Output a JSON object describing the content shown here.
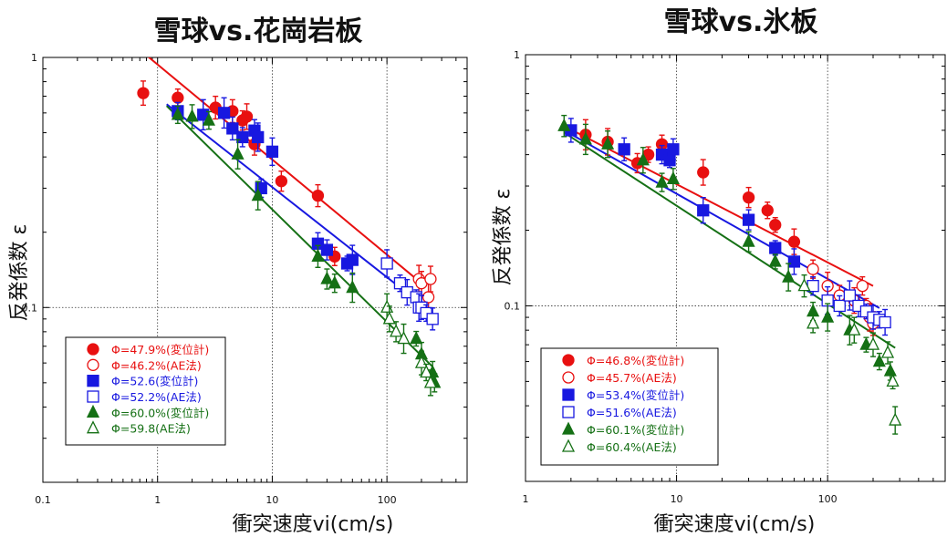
{
  "chart_data": [
    {
      "type": "scatter",
      "title": "雪球vs.花崗岩板",
      "xlabel": "衝突速度vi(cm/s)",
      "ylabel": "反発係数 ε",
      "x_scale": "log",
      "y_scale": "log",
      "xlim": [
        0.1,
        500
      ],
      "ylim": [
        0.02,
        1
      ],
      "x_ticks": [
        "0.1",
        "1",
        "10",
        "100"
      ],
      "y_ticks": [
        "1",
        "0.1"
      ],
      "grid": "dotted at decades",
      "legend_position": "bottom-left",
      "series": [
        {
          "name": "Φ=47.9%(変位計)",
          "color": "#e81010",
          "marker": "circle-filled",
          "points": [
            [
              0.75,
              0.72
            ],
            [
              1.5,
              0.69
            ],
            [
              3.2,
              0.63
            ],
            [
              4.5,
              0.61
            ],
            [
              5.5,
              0.56
            ],
            [
              6.0,
              0.58
            ],
            [
              7.0,
              0.45
            ],
            [
              12.0,
              0.32
            ],
            [
              25.0,
              0.28
            ],
            [
              35.0,
              0.16
            ]
          ]
        },
        {
          "name": "Φ=46.2%(AE法)",
          "color": "#e81010",
          "marker": "circle-open",
          "points": [
            [
              190,
              0.13
            ],
            [
              200,
              0.125
            ],
            [
              230,
              0.11
            ],
            [
              240,
              0.13
            ]
          ]
        },
        {
          "name": "Φ=52.6(変位計)",
          "color": "#1818e0",
          "marker": "square-filled",
          "points": [
            [
              1.5,
              0.61
            ],
            [
              2.5,
              0.59
            ],
            [
              3.8,
              0.6
            ],
            [
              4.5,
              0.52
            ],
            [
              5.5,
              0.48
            ],
            [
              7.0,
              0.51
            ],
            [
              7.5,
              0.48
            ],
            [
              8.0,
              0.3
            ],
            [
              10,
              0.42
            ],
            [
              25,
              0.18
            ],
            [
              30,
              0.17
            ],
            [
              45,
              0.15
            ],
            [
              50,
              0.155
            ]
          ]
        },
        {
          "name": "Φ=52.2%(AE法)",
          "color": "#1818e0",
          "marker": "square-open",
          "points": [
            [
              100,
              0.15
            ],
            [
              130,
              0.125
            ],
            [
              150,
              0.115
            ],
            [
              180,
              0.11
            ],
            [
              190,
              0.1
            ],
            [
              200,
              0.1
            ],
            [
              220,
              0.095
            ],
            [
              250,
              0.09
            ]
          ]
        },
        {
          "name": "Φ=60.0%(変位計)",
          "color": "#157015",
          "marker": "triangle-filled",
          "points": [
            [
              1.5,
              0.59
            ],
            [
              2.0,
              0.58
            ],
            [
              2.8,
              0.56
            ],
            [
              5.0,
              0.41
            ],
            [
              7.5,
              0.28
            ],
            [
              25,
              0.16
            ],
            [
              30,
              0.13
            ],
            [
              35,
              0.125
            ],
            [
              50,
              0.12
            ],
            [
              180,
              0.075
            ],
            [
              200,
              0.065
            ],
            [
              250,
              0.055
            ],
            [
              260,
              0.05
            ]
          ]
        },
        {
          "name": "Φ=59.8(AE法)",
          "color": "#157015",
          "marker": "triangle-open",
          "points": [
            [
              100,
              0.1
            ],
            [
              105,
              0.09
            ],
            [
              120,
              0.08
            ],
            [
              140,
              0.075
            ],
            [
              200,
              0.06
            ],
            [
              220,
              0.055
            ],
            [
              240,
              0.05
            ]
          ]
        }
      ],
      "fit_lines": [
        {
          "color": "#e81010",
          "x": [
            0.8,
            200
          ],
          "y": [
            1.02,
            0.125
          ]
        },
        {
          "color": "#1818e0",
          "x": [
            1.2,
            250
          ],
          "y": [
            0.65,
            0.095
          ]
        },
        {
          "color": "#157015",
          "x": [
            1.2,
            250
          ],
          "y": [
            0.64,
            0.058
          ]
        }
      ]
    },
    {
      "type": "scatter",
      "title": "雪球vs.氷板",
      "xlabel": "衝突速度vi(cm/s)",
      "ylabel": "反発係数 ε",
      "x_scale": "log",
      "y_scale": "log",
      "xlim": [
        1,
        600
      ],
      "ylim": [
        0.02,
        1
      ],
      "x_ticks": [
        "1",
        "10",
        "100"
      ],
      "y_ticks": [
        "1",
        "0.1"
      ],
      "grid": "dotted at decades",
      "legend_position": "bottom-left",
      "series": [
        {
          "name": "Φ=46.8%(変位計)",
          "color": "#e81010",
          "marker": "circle-filled",
          "points": [
            [
              2.5,
              0.48
            ],
            [
              3.5,
              0.45
            ],
            [
              5.5,
              0.37
            ],
            [
              6.5,
              0.4
            ],
            [
              8.0,
              0.44
            ],
            [
              15,
              0.34
            ],
            [
              30,
              0.27
            ],
            [
              40,
              0.24
            ],
            [
              45,
              0.21
            ],
            [
              60,
              0.18
            ]
          ]
        },
        {
          "name": "Φ=45.7%(AE法)",
          "color": "#e81010",
          "marker": "circle-open",
          "points": [
            [
              80,
              0.14
            ],
            [
              100,
              0.12
            ],
            [
              120,
              0.11
            ],
            [
              150,
              0.105
            ],
            [
              170,
              0.12
            ],
            [
              180,
              0.1
            ],
            [
              190,
              0.09
            ],
            [
              200,
              0.085
            ]
          ]
        },
        {
          "name": "Φ=53.4%(変位計)",
          "color": "#1818e0",
          "marker": "square-filled",
          "points": [
            [
              2.0,
              0.5
            ],
            [
              4.5,
              0.42
            ],
            [
              8.0,
              0.4
            ],
            [
              9.0,
              0.38
            ],
            [
              9.5,
              0.42
            ],
            [
              15,
              0.24
            ],
            [
              30,
              0.22
            ],
            [
              45,
              0.17
            ],
            [
              60,
              0.15
            ]
          ]
        },
        {
          "name": "Φ=51.6%(AE法)",
          "color": "#1818e0",
          "marker": "square-open",
          "points": [
            [
              80,
              0.12
            ],
            [
              100,
              0.105
            ],
            [
              120,
              0.1
            ],
            [
              140,
              0.11
            ],
            [
              160,
              0.1
            ],
            [
              180,
              0.095
            ],
            [
              200,
              0.09
            ],
            [
              220,
              0.088
            ],
            [
              240,
              0.086
            ]
          ]
        },
        {
          "name": "Φ=60.1%(変位計)",
          "color": "#157015",
          "marker": "triangle-filled",
          "points": [
            [
              1.8,
              0.52
            ],
            [
              2.5,
              0.46
            ],
            [
              3.5,
              0.44
            ],
            [
              6.0,
              0.38
            ],
            [
              8.0,
              0.31
            ],
            [
              9.5,
              0.32
            ],
            [
              30,
              0.18
            ],
            [
              45,
              0.15
            ],
            [
              55,
              0.13
            ],
            [
              80,
              0.095
            ],
            [
              100,
              0.09
            ],
            [
              140,
              0.08
            ],
            [
              180,
              0.07
            ],
            [
              220,
              0.06
            ],
            [
              260,
              0.055
            ]
          ]
        },
        {
          "name": "Φ=60.4%(AE法)",
          "color": "#157015",
          "marker": "triangle-open",
          "points": [
            [
              70,
              0.12
            ],
            [
              80,
              0.085
            ],
            [
              150,
              0.08
            ],
            [
              200,
              0.07
            ],
            [
              250,
              0.065
            ],
            [
              270,
              0.05
            ],
            [
              280,
              0.035
            ]
          ]
        }
      ],
      "fit_lines": [
        {
          "color": "#e81010",
          "x": [
            1.8,
            200
          ],
          "y": [
            0.52,
            0.12
          ]
        },
        {
          "color": "#1818e0",
          "x": [
            1.8,
            220
          ],
          "y": [
            0.5,
            0.098
          ]
        },
        {
          "color": "#157015",
          "x": [
            1.8,
            280
          ],
          "y": [
            0.49,
            0.068
          ]
        }
      ]
    }
  ]
}
